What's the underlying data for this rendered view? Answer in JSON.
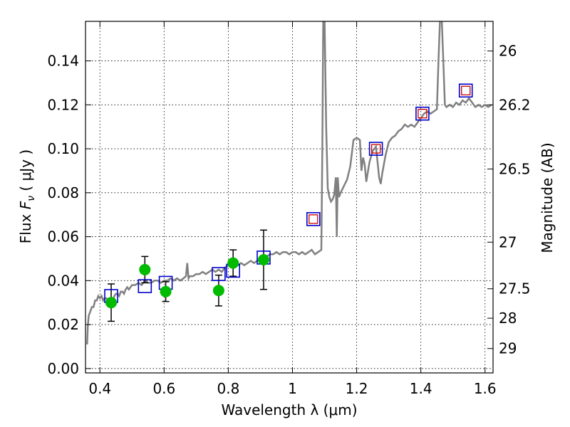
{
  "chart_data": {
    "type": "scatter",
    "xlabel": "Wavelength  λ (μm)",
    "ylabel": "Flux  F_ν  ( μJy )",
    "y2label": "Magnitude (AB)",
    "xlim": [
      0.355,
      1.625
    ],
    "ylim": [
      -0.002,
      0.158
    ],
    "grid": true,
    "colors": {
      "spectrum": "#808080",
      "observed": "#00bb00",
      "model_box": "#0000cc",
      "model_inner": "#cc0000",
      "errorbar": "#000000"
    },
    "x_ticks": [
      {
        "value": 0.4,
        "label": "0.4"
      },
      {
        "value": 0.6,
        "label": "0.6"
      },
      {
        "value": 0.8,
        "label": "0.8"
      },
      {
        "value": 1.0,
        "label": "1"
      },
      {
        "value": 1.2,
        "label": "1.2"
      },
      {
        "value": 1.4,
        "label": "1.4"
      },
      {
        "value": 1.6,
        "label": "1.6"
      }
    ],
    "y_ticks": [
      {
        "value": 0.0,
        "label": "0.00"
      },
      {
        "value": 0.02,
        "label": "0.02"
      },
      {
        "value": 0.04,
        "label": "0.04"
      },
      {
        "value": 0.06,
        "label": "0.06"
      },
      {
        "value": 0.08,
        "label": "0.08"
      },
      {
        "value": 0.1,
        "label": "0.10"
      },
      {
        "value": 0.12,
        "label": "0.12"
      },
      {
        "value": 0.14,
        "label": "0.14"
      }
    ],
    "y2_ticks": [
      {
        "flux": 0.1445,
        "label": "26"
      },
      {
        "flux": 0.12,
        "label": "26.2"
      },
      {
        "flux": 0.0908,
        "label": "26.5"
      },
      {
        "flux": 0.0575,
        "label": "27"
      },
      {
        "flux": 0.0363,
        "label": "27.5"
      },
      {
        "flux": 0.0229,
        "label": "28"
      },
      {
        "flux": 0.0091,
        "label": "29"
      }
    ],
    "spectrum": {
      "name": "",
      "points": [
        [
          0.36,
          0.011
        ],
        [
          0.362,
          0.019
        ],
        [
          0.365,
          0.024
        ],
        [
          0.37,
          0.026
        ],
        [
          0.375,
          0.028
        ],
        [
          0.38,
          0.028
        ],
        [
          0.385,
          0.031
        ],
        [
          0.39,
          0.031
        ],
        [
          0.395,
          0.033
        ],
        [
          0.4,
          0.032
        ],
        [
          0.405,
          0.033
        ],
        [
          0.41,
          0.031
        ],
        [
          0.415,
          0.032
        ],
        [
          0.42,
          0.032
        ],
        [
          0.425,
          0.031
        ],
        [
          0.43,
          0.029
        ],
        [
          0.435,
          0.03
        ],
        [
          0.44,
          0.031
        ],
        [
          0.445,
          0.033
        ],
        [
          0.45,
          0.034
        ],
        [
          0.455,
          0.034
        ],
        [
          0.46,
          0.033
        ],
        [
          0.465,
          0.035
        ],
        [
          0.47,
          0.035
        ],
        [
          0.475,
          0.034
        ],
        [
          0.48,
          0.036
        ],
        [
          0.485,
          0.037
        ],
        [
          0.49,
          0.036
        ],
        [
          0.495,
          0.037
        ],
        [
          0.5,
          0.038
        ],
        [
          0.51,
          0.038
        ],
        [
          0.52,
          0.039
        ],
        [
          0.53,
          0.038
        ],
        [
          0.54,
          0.04
        ],
        [
          0.55,
          0.039
        ],
        [
          0.56,
          0.039
        ],
        [
          0.57,
          0.04
        ],
        [
          0.58,
          0.04
        ],
        [
          0.59,
          0.039
        ],
        [
          0.6,
          0.04
        ],
        [
          0.61,
          0.04
        ],
        [
          0.62,
          0.041
        ],
        [
          0.63,
          0.04
        ],
        [
          0.64,
          0.041
        ],
        [
          0.65,
          0.04
        ],
        [
          0.66,
          0.041
        ],
        [
          0.668,
          0.042
        ],
        [
          0.672,
          0.048
        ],
        [
          0.676,
          0.041
        ],
        [
          0.68,
          0.042
        ],
        [
          0.69,
          0.042
        ],
        [
          0.7,
          0.043
        ],
        [
          0.71,
          0.043
        ],
        [
          0.72,
          0.044
        ],
        [
          0.73,
          0.043
        ],
        [
          0.74,
          0.044
        ],
        [
          0.75,
          0.045
        ],
        [
          0.76,
          0.044
        ],
        [
          0.77,
          0.045
        ],
        [
          0.78,
          0.044
        ],
        [
          0.79,
          0.046
        ],
        [
          0.8,
          0.047
        ],
        [
          0.81,
          0.046
        ],
        [
          0.82,
          0.047
        ],
        [
          0.83,
          0.047
        ],
        [
          0.84,
          0.048
        ],
        [
          0.85,
          0.047
        ],
        [
          0.86,
          0.048
        ],
        [
          0.87,
          0.049
        ],
        [
          0.88,
          0.048
        ],
        [
          0.89,
          0.049
        ],
        [
          0.9,
          0.05
        ],
        [
          0.91,
          0.05
        ],
        [
          0.92,
          0.051
        ],
        [
          0.93,
          0.052
        ],
        [
          0.94,
          0.052
        ],
        [
          0.95,
          0.053
        ],
        [
          0.96,
          0.052
        ],
        [
          0.97,
          0.053
        ],
        [
          0.98,
          0.053
        ],
        [
          0.99,
          0.052
        ],
        [
          1.0,
          0.053
        ],
        [
          1.01,
          0.053
        ],
        [
          1.02,
          0.052
        ],
        [
          1.03,
          0.053
        ],
        [
          1.04,
          0.052
        ],
        [
          1.05,
          0.053
        ],
        [
          1.06,
          0.054
        ],
        [
          1.07,
          0.052
        ],
        [
          1.08,
          0.053
        ],
        [
          1.09,
          0.054
        ],
        [
          1.093,
          0.1
        ],
        [
          1.096,
          0.16
        ],
        [
          1.1,
          0.16
        ],
        [
          1.105,
          0.11
        ],
        [
          1.11,
          0.082
        ],
        [
          1.115,
          0.078
        ],
        [
          1.12,
          0.076
        ],
        [
          1.125,
          0.077
        ],
        [
          1.13,
          0.079
        ],
        [
          1.135,
          0.087
        ],
        [
          1.138,
          0.06
        ],
        [
          1.141,
          0.087
        ],
        [
          1.145,
          0.078
        ],
        [
          1.15,
          0.08
        ],
        [
          1.16,
          0.083
        ],
        [
          1.17,
          0.086
        ],
        [
          1.18,
          0.092
        ],
        [
          1.19,
          0.104
        ],
        [
          1.2,
          0.105
        ],
        [
          1.21,
          0.104
        ],
        [
          1.215,
          0.09
        ],
        [
          1.22,
          0.096
        ],
        [
          1.225,
          0.093
        ],
        [
          1.23,
          0.085
        ],
        [
          1.24,
          0.094
        ],
        [
          1.25,
          0.099
        ],
        [
          1.26,
          0.101
        ],
        [
          1.265,
          0.094
        ],
        [
          1.27,
          0.087
        ],
        [
          1.275,
          0.084
        ],
        [
          1.28,
          0.089
        ],
        [
          1.29,
          0.097
        ],
        [
          1.3,
          0.103
        ],
        [
          1.31,
          0.105
        ],
        [
          1.32,
          0.106
        ],
        [
          1.33,
          0.108
        ],
        [
          1.34,
          0.109
        ],
        [
          1.35,
          0.111
        ],
        [
          1.36,
          0.11
        ],
        [
          1.37,
          0.111
        ],
        [
          1.38,
          0.11
        ],
        [
          1.39,
          0.112
        ],
        [
          1.4,
          0.114
        ],
        [
          1.41,
          0.116
        ],
        [
          1.42,
          0.117
        ],
        [
          1.43,
          0.116
        ],
        [
          1.44,
          0.117
        ],
        [
          1.45,
          0.118
        ],
        [
          1.455,
          0.14
        ],
        [
          1.46,
          0.16
        ],
        [
          1.465,
          0.16
        ],
        [
          1.47,
          0.14
        ],
        [
          1.475,
          0.12
        ],
        [
          1.48,
          0.119
        ],
        [
          1.49,
          0.12
        ],
        [
          1.5,
          0.119
        ],
        [
          1.51,
          0.121
        ],
        [
          1.52,
          0.12
        ],
        [
          1.53,
          0.122
        ],
        [
          1.54,
          0.121
        ],
        [
          1.55,
          0.123
        ],
        [
          1.56,
          0.121
        ],
        [
          1.57,
          0.119
        ],
        [
          1.58,
          0.12
        ],
        [
          1.59,
          0.119
        ],
        [
          1.6,
          0.12
        ],
        [
          1.61,
          0.119
        ],
        [
          1.62,
          0.12
        ]
      ]
    },
    "observed": {
      "name": "",
      "points": [
        {
          "x": 0.435,
          "y": 0.03,
          "err": 0.0085
        },
        {
          "x": 0.54,
          "y": 0.045,
          "err": 0.006
        },
        {
          "x": 0.605,
          "y": 0.035,
          "err": 0.0045
        },
        {
          "x": 0.77,
          "y": 0.0355,
          "err": 0.007
        },
        {
          "x": 0.815,
          "y": 0.048,
          "err": 0.006
        },
        {
          "x": 0.91,
          "y": 0.0495,
          "err": 0.0135
        }
      ]
    },
    "model": {
      "name": "",
      "points": [
        {
          "x": 0.435,
          "y": 0.033,
          "inner": false
        },
        {
          "x": 0.54,
          "y": 0.0375,
          "inner": false
        },
        {
          "x": 0.605,
          "y": 0.039,
          "inner": false
        },
        {
          "x": 0.77,
          "y": 0.043,
          "inner": false
        },
        {
          "x": 0.815,
          "y": 0.0445,
          "inner": false
        },
        {
          "x": 0.91,
          "y": 0.0505,
          "inner": false
        },
        {
          "x": 1.065,
          "y": 0.068,
          "inner": true
        },
        {
          "x": 1.26,
          "y": 0.1,
          "inner": true
        },
        {
          "x": 1.405,
          "y": 0.116,
          "inner": true
        },
        {
          "x": 1.54,
          "y": 0.1265,
          "inner": true
        }
      ]
    }
  }
}
